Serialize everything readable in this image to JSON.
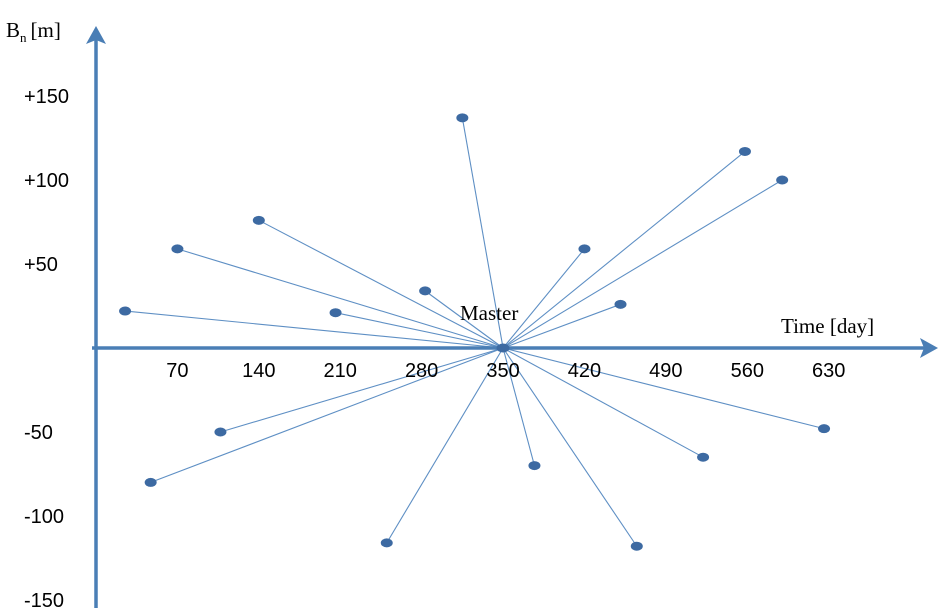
{
  "chart_data": {
    "type": "scatter",
    "title": "",
    "xlabel": "Time [day]",
    "ylabel_main": "B",
    "ylabel_sub": "n",
    "ylabel_unit": "[m]",
    "xlim": [
      0,
      700
    ],
    "ylim": [
      -160,
      175
    ],
    "x_ticks": [
      70,
      140,
      210,
      280,
      350,
      420,
      490,
      560,
      630
    ],
    "x_tick_labels": [
      "70",
      "140",
      "210",
      "280",
      "350",
      "420",
      "490",
      "560",
      "630"
    ],
    "y_ticks": [
      150,
      100,
      50,
      -50,
      -100,
      -150
    ],
    "y_tick_labels": [
      "+150",
      "+100",
      "+50",
      "-50",
      "-100",
      "-150"
    ],
    "master": {
      "x": 350,
      "y": 0,
      "label": "Master"
    },
    "points": [
      {
        "x": 25,
        "y": 22
      },
      {
        "x": 70,
        "y": 59
      },
      {
        "x": 140,
        "y": 76
      },
      {
        "x": 206,
        "y": 21
      },
      {
        "x": 283,
        "y": 34
      },
      {
        "x": 315,
        "y": 137
      },
      {
        "x": 420,
        "y": 59
      },
      {
        "x": 451,
        "y": 26
      },
      {
        "x": 558,
        "y": 117
      },
      {
        "x": 590,
        "y": 100
      },
      {
        "x": 47,
        "y": -80
      },
      {
        "x": 107,
        "y": -50
      },
      {
        "x": 250,
        "y": -116
      },
      {
        "x": 377,
        "y": -70
      },
      {
        "x": 465,
        "y": -118
      },
      {
        "x": 522,
        "y": -65
      },
      {
        "x": 626,
        "y": -48
      }
    ],
    "colors": {
      "axis": "#4a7eb5",
      "line": "#5e8fc4",
      "marker": "#3d6aa2"
    }
  }
}
